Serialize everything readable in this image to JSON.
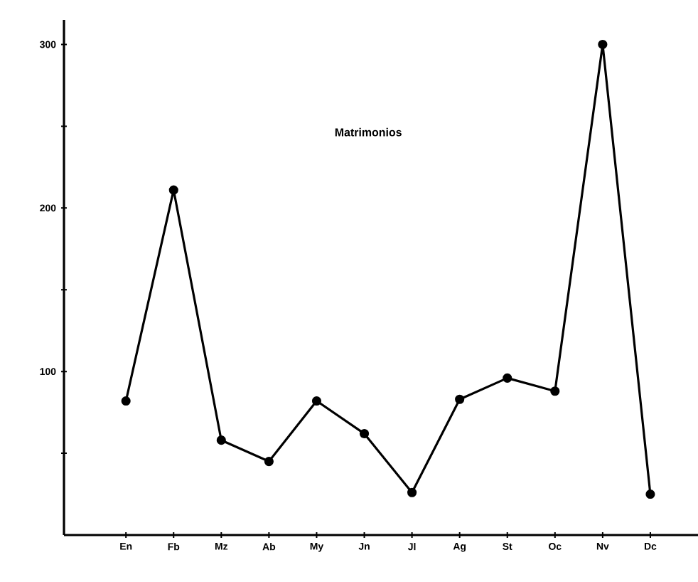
{
  "chart_data": {
    "type": "line",
    "title": "Matrimonios",
    "categories": [
      "En",
      "Fb",
      "Mz",
      "Ab",
      "My",
      "Jn",
      "Jl",
      "Ag",
      "St",
      "Oc",
      "Nv",
      "Dc"
    ],
    "values": [
      82,
      211,
      58,
      45,
      82,
      62,
      26,
      83,
      96,
      88,
      300,
      25
    ],
    "color": "#000000",
    "marker": "circle",
    "line_style": "solid",
    "ylim": [
      0,
      315
    ],
    "yticks": [
      {
        "value": 50,
        "label": null
      },
      100,
      {
        "value": 150,
        "label": null
      },
      200,
      {
        "value": 250,
        "label": null
      },
      300
    ]
  }
}
